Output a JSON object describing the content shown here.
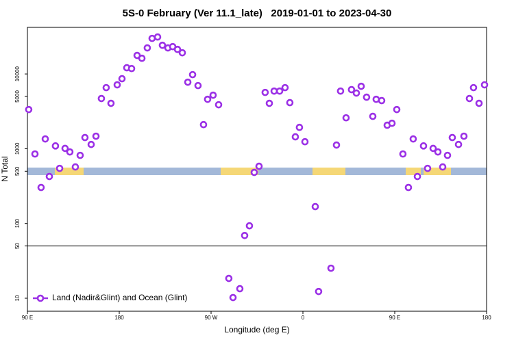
{
  "chart_data": {
    "type": "scatter",
    "title": "5S-0 February (Ver 11.1_late)   2019-01-01 to 2023-04-30",
    "x_label": "Longitude (deg E)",
    "y_label": "N Total",
    "log_y": true,
    "hline": 50,
    "legend": "lower left",
    "xlim": [
      90,
      540
    ],
    "ylim": [
      6.7,
      42000
    ],
    "xticks": [
      {
        "value": 90,
        "label": "90 E"
      },
      {
        "value": 180,
        "label": "180"
      },
      {
        "value": 270,
        "label": "90 W"
      },
      {
        "value": 360,
        "label": "0"
      },
      {
        "value": 450,
        "label": "90 E"
      },
      {
        "value": 540,
        "label": "180"
      }
    ],
    "yticks": [
      10,
      50,
      100,
      500,
      1000,
      5000,
      10000
    ],
    "series": [
      {
        "name": "Land (Nadir&Glint) and Ocean (Glint)",
        "color": "#9b30e6",
        "x": [
          91.3,
          97.4,
          103.4,
          107.5,
          111.5,
          117.5,
          121.6,
          126.9,
          131.6,
          137,
          141.7,
          146.4,
          152.5,
          157.2,
          162.5,
          167.2,
          171.9,
          178,
          182.7,
          187.4,
          192.1,
          197.5,
          202.2,
          207.5,
          212.2,
          217.6,
          222.3,
          227.7,
          232.4,
          237.1,
          241.8,
          247.2,
          251.9,
          257.2,
          262.6,
          266.6,
          272,
          277.4,
          287.4,
          291.5,
          298.2,
          302.9,
          307.6,
          312.3,
          317,
          323,
          327.1,
          331.8,
          337.2,
          342.5,
          347.2,
          352.6,
          356.6,
          362,
          372.1,
          375.4,
          387.5,
          392.9,
          396.9,
          402.3,
          407.6,
          412.4,
          417.1,
          422.4,
          428.5,
          431.8,
          437.2,
          442.6,
          447.3,
          452,
          458,
          463.4,
          468.1,
          472.2,
          478.2,
          482.2,
          487.6,
          492.3,
          497,
          501.7,
          506.4,
          512.5,
          517.8,
          523.2,
          527.2,
          532.6,
          538
        ],
        "values": [
          3340,
          850,
          303,
          1350,
          425,
          1090,
          546,
          1010,
          905,
          570,
          815,
          1410,
          1140,
          1470,
          4690,
          6560,
          4050,
          7150,
          8630,
          12100,
          11800,
          17700,
          16200,
          22300,
          29900,
          31200,
          24200,
          22300,
          23200,
          21300,
          19200,
          7760,
          9790,
          6990,
          2100,
          4580,
          5200,
          3870,
          18.4,
          10.2,
          13.4,
          69,
          93,
          482,
          582,
          5660,
          4050,
          5900,
          5900,
          6560,
          4130,
          1440,
          1930,
          1240,
          168,
          12.3,
          25.2,
          1120,
          5900,
          2590,
          6170,
          5550,
          6840,
          4890,
          2710,
          4580,
          4400,
          2060,
          2190,
          3340,
          850,
          303,
          1350,
          425,
          1090,
          546,
          1010,
          905,
          570,
          815,
          1410,
          1140,
          1470,
          4690,
          6560,
          4050,
          7150
        ]
      }
    ]
  }
}
